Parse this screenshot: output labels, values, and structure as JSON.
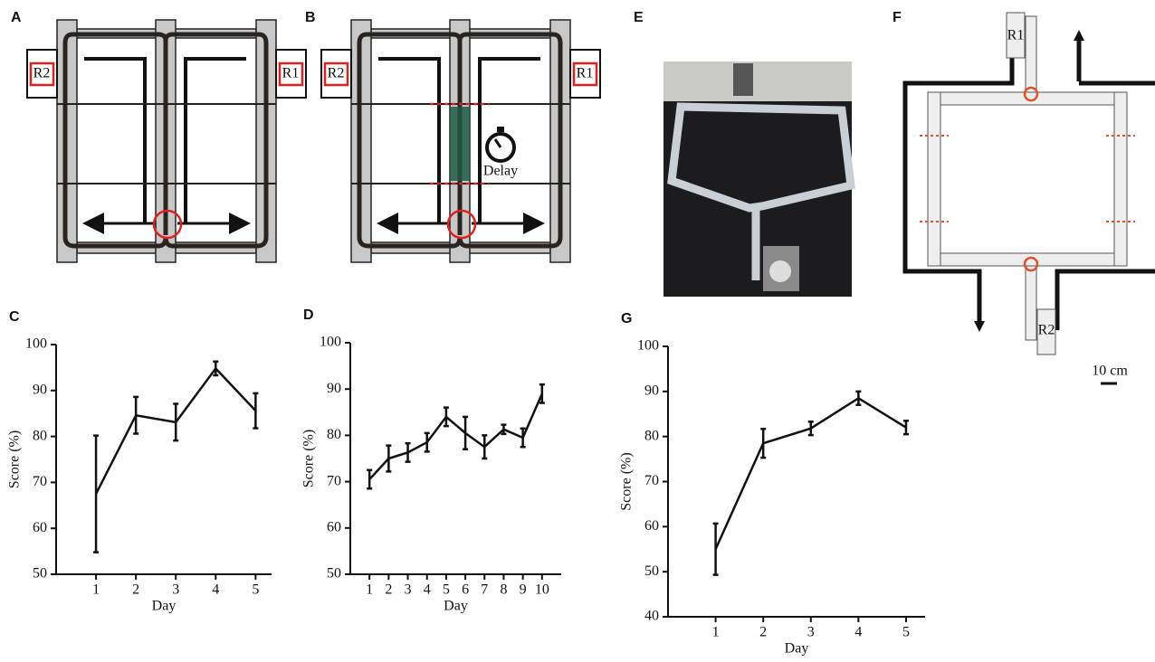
{
  "diagrams": {
    "A": {
      "label": "A",
      "r1": "R1",
      "r2": "R2"
    },
    "B": {
      "label": "B",
      "r1": "R1",
      "r2": "R2",
      "delay": "Delay"
    },
    "E": {
      "label": "E"
    },
    "F": {
      "label": "F",
      "r1": "R1",
      "r2": "R2",
      "scale": "10 cm"
    }
  },
  "chart_data": [
    {
      "type": "line",
      "panel_label": "C",
      "xlabel": "Day",
      "ylabel": "Score (%)",
      "color": "#111111",
      "x": [
        1,
        2,
        3,
        4,
        5
      ],
      "values": [
        67.5,
        84.6,
        83.1,
        94.8,
        85.6
      ],
      "errors": [
        12.7,
        4,
        4,
        1.5,
        3.8
      ],
      "xlim": [
        0,
        5.4
      ],
      "ylim": [
        50,
        100
      ],
      "xticks": [
        1,
        2,
        3,
        4,
        5
      ],
      "yticks": [
        50,
        60,
        70,
        80,
        90,
        100
      ]
    },
    {
      "type": "line",
      "panel_label": "D",
      "xlabel": "Day",
      "ylabel": "Score (%)",
      "color": "#111111",
      "x": [
        1,
        2,
        3,
        4,
        5,
        6,
        7,
        8,
        9,
        10
      ],
      "values": [
        70.5,
        75,
        76.3,
        78.5,
        84,
        80.5,
        77.5,
        81.3,
        79.5,
        89
      ],
      "errors": [
        2,
        2.8,
        2,
        2,
        2,
        3.5,
        2.5,
        1,
        2,
        2
      ],
      "xlim": [
        0,
        11
      ],
      "ylim": [
        50,
        100
      ],
      "xticks": [
        1,
        2,
        3,
        4,
        5,
        6,
        7,
        8,
        9,
        10
      ],
      "yticks": [
        50,
        60,
        70,
        80,
        90,
        100
      ]
    },
    {
      "type": "line",
      "panel_label": "G",
      "xlabel": "Day",
      "ylabel": "Score (%)",
      "color": "#111111",
      "x": [
        1,
        2,
        3,
        4,
        5
      ],
      "values": [
        55,
        78.5,
        81.8,
        88.5,
        82
      ],
      "errors": [
        5.7,
        3.2,
        1.5,
        1.5,
        1.5
      ],
      "xlim": [
        0,
        5.4
      ],
      "ylim": [
        40,
        100
      ],
      "xticks": [
        1,
        2,
        3,
        4,
        5
      ],
      "yticks": [
        40,
        50,
        60,
        70,
        80,
        90,
        100
      ]
    }
  ]
}
